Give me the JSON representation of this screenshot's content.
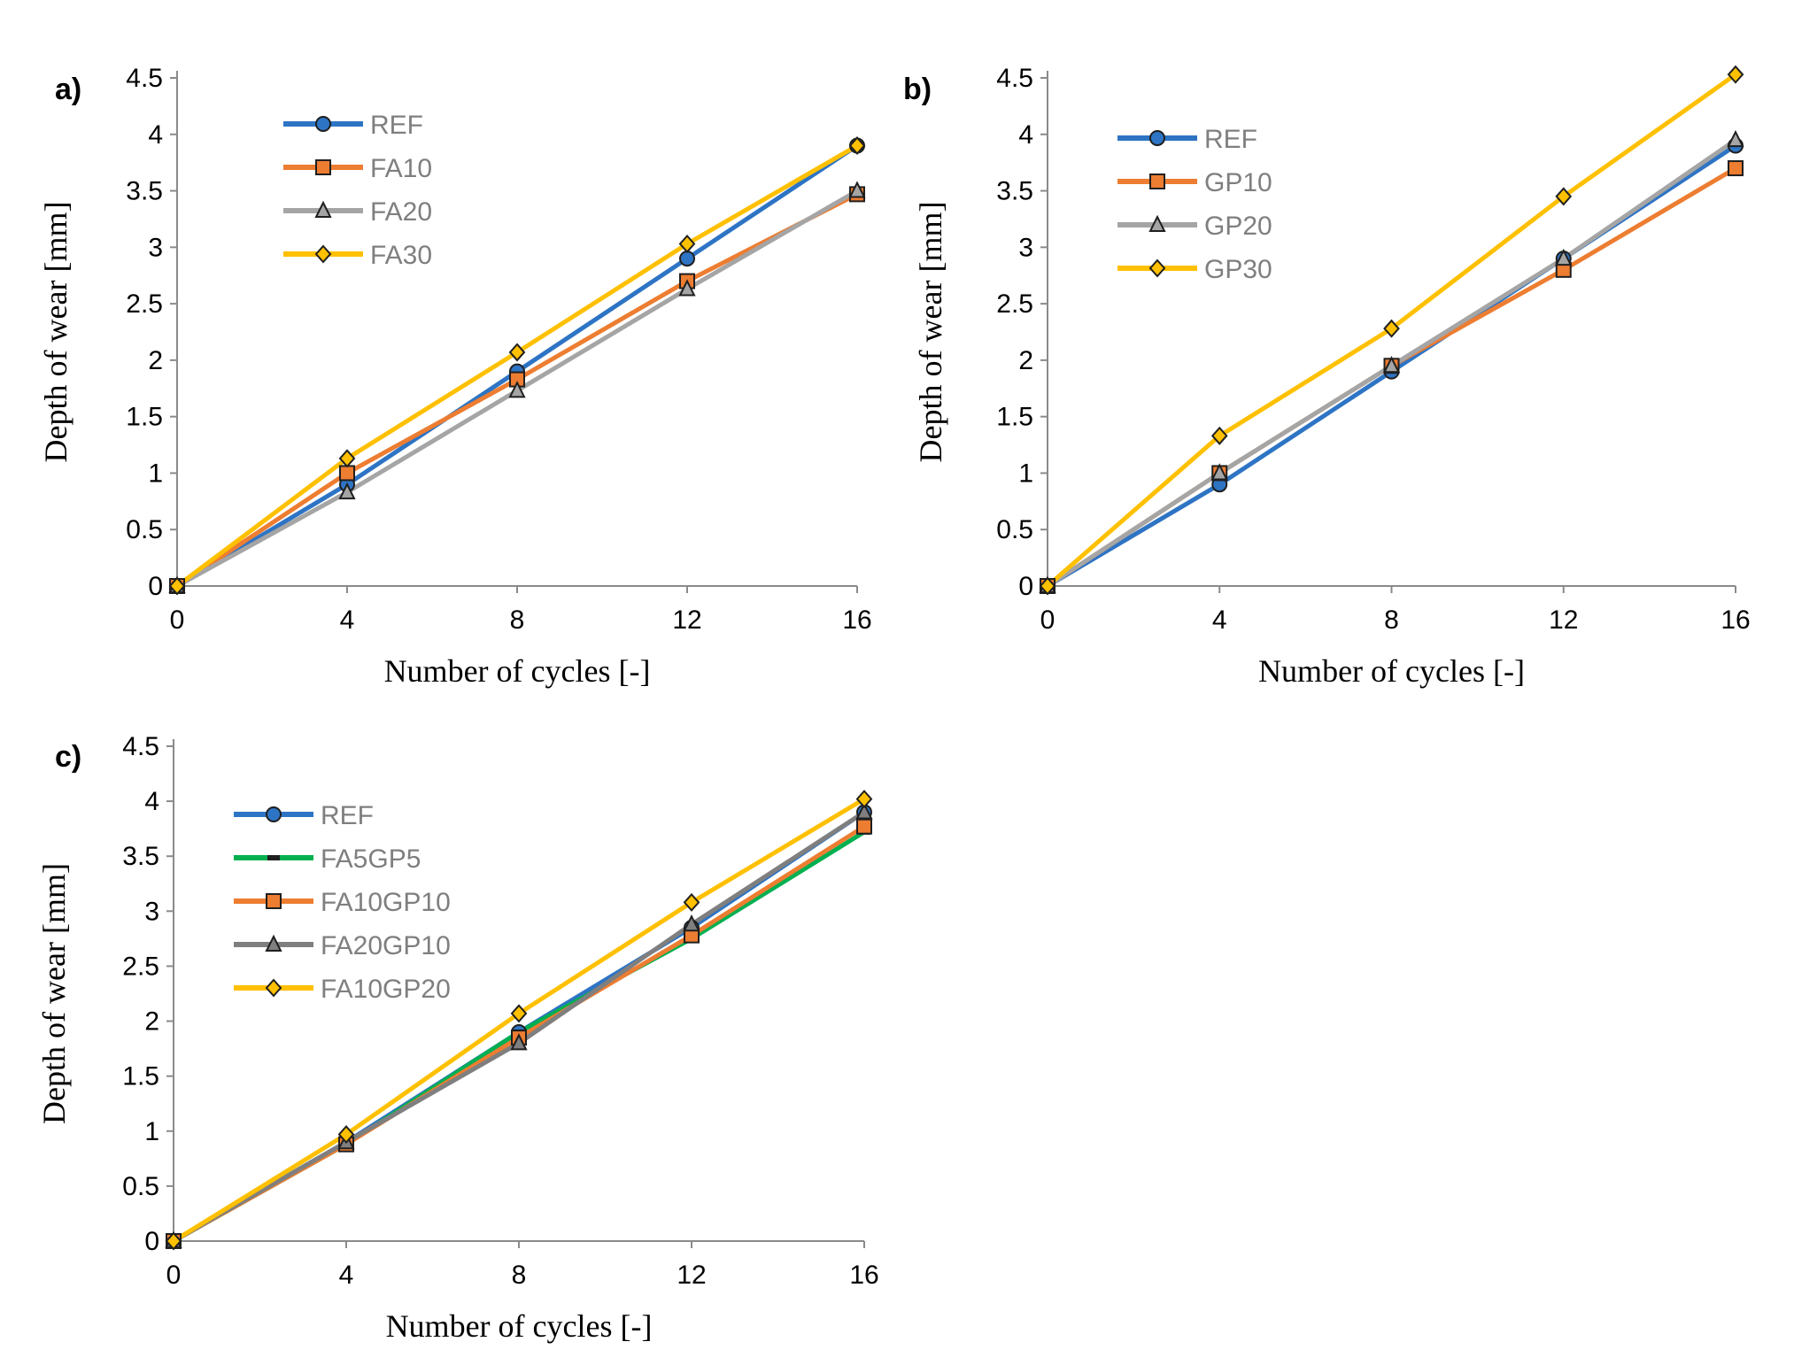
{
  "chart_data": [
    {
      "type": "line",
      "panel_label": "a)",
      "xlabel": "Number of cycles [-]",
      "ylabel": "Depth of wear [mm]",
      "x": [
        0,
        4,
        8,
        12,
        16
      ],
      "x_ticks": [
        "0",
        "4",
        "8",
        "12",
        "16"
      ],
      "y_ticks": [
        "0",
        "0.5",
        "1",
        "1.5",
        "2",
        "2.5",
        "3",
        "3.5",
        "4",
        "4.5"
      ],
      "xlim": [
        0,
        16
      ],
      "ylim": [
        0,
        4.5
      ],
      "series": [
        {
          "name": "REF",
          "color": "#2e74c4",
          "marker": "circle",
          "values": [
            0,
            0.9,
            1.9,
            2.9,
            3.9
          ]
        },
        {
          "name": "FA10",
          "color": "#ed7d31",
          "marker": "square",
          "values": [
            0,
            1.0,
            1.83,
            2.7,
            3.47
          ]
        },
        {
          "name": "FA20",
          "color": "#a5a5a5",
          "marker": "triangle",
          "values": [
            0,
            0.83,
            1.73,
            2.63,
            3.5
          ]
        },
        {
          "name": "FA30",
          "color": "#ffc000",
          "marker": "diamond",
          "values": [
            0,
            1.13,
            2.07,
            3.03,
            3.9
          ]
        }
      ]
    },
    {
      "type": "line",
      "panel_label": "b)",
      "xlabel": "Number of cycles [-]",
      "ylabel": "Depth of wear [mm]",
      "x": [
        0,
        4,
        8,
        12,
        16
      ],
      "x_ticks": [
        "0",
        "4",
        "8",
        "12",
        "16"
      ],
      "y_ticks": [
        "0",
        "0.5",
        "1",
        "1.5",
        "2",
        "2.5",
        "3",
        "3.5",
        "4",
        "4.5"
      ],
      "xlim": [
        0,
        16
      ],
      "ylim": [
        0,
        4.5
      ],
      "series": [
        {
          "name": "REF",
          "color": "#2e74c4",
          "marker": "circle",
          "values": [
            0,
            0.9,
            1.9,
            2.9,
            3.9
          ]
        },
        {
          "name": "GP10",
          "color": "#ed7d31",
          "marker": "square",
          "values": [
            0,
            1.0,
            1.95,
            2.8,
            3.7
          ]
        },
        {
          "name": "GP20",
          "color": "#a5a5a5",
          "marker": "triangle",
          "values": [
            0,
            1.0,
            1.95,
            2.9,
            3.95
          ]
        },
        {
          "name": "GP30",
          "color": "#ffc000",
          "marker": "diamond",
          "values": [
            0,
            1.33,
            2.28,
            3.45,
            4.53
          ]
        }
      ]
    },
    {
      "type": "line",
      "panel_label": "c)",
      "xlabel": "Number of cycles [-]",
      "ylabel": "Depth of wear [mm]",
      "x": [
        0,
        4,
        8,
        12,
        16
      ],
      "x_ticks": [
        "0",
        "4",
        "8",
        "12",
        "16"
      ],
      "y_ticks": [
        "0",
        "0.5",
        "1",
        "1.5",
        "2",
        "2.5",
        "3",
        "3.5",
        "4",
        "4.5"
      ],
      "xlim": [
        0,
        16
      ],
      "ylim": [
        0,
        4.5
      ],
      "series": [
        {
          "name": "REF",
          "color": "#2e74c4",
          "marker": "circle",
          "values": [
            0,
            0.9,
            1.9,
            2.85,
            3.9
          ]
        },
        {
          "name": "FA5GP5",
          "color": "#00b050",
          "marker": "dash",
          "values": [
            0,
            0.88,
            1.9,
            2.75,
            3.72
          ]
        },
        {
          "name": "FA10GP10",
          "color": "#ed7d31",
          "marker": "square",
          "values": [
            0,
            0.88,
            1.85,
            2.78,
            3.77
          ]
        },
        {
          "name": "FA20GP10",
          "color": "#7f7f7f",
          "marker": "triangle",
          "values": [
            0,
            0.9,
            1.8,
            2.88,
            3.9
          ]
        },
        {
          "name": "FA10GP20",
          "color": "#ffc000",
          "marker": "diamond",
          "values": [
            0,
            0.97,
            2.07,
            3.08,
            4.02
          ]
        }
      ]
    }
  ]
}
